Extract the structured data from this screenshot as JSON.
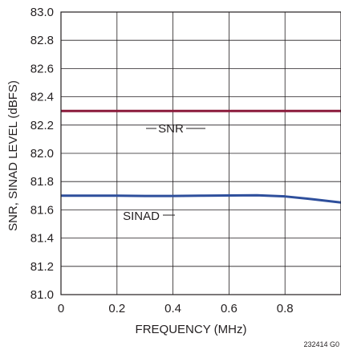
{
  "chart_data": {
    "type": "line",
    "title": "",
    "xlabel": "FREQUENCY (MHz)",
    "ylabel": "SNR, SINAD LEVEL (dBFS)",
    "xlim": [
      0,
      1.0
    ],
    "ylim": [
      81.0,
      83.0
    ],
    "x_ticks": [
      "0",
      "0.2",
      "0.4",
      "0.6",
      "0.8"
    ],
    "x_tick_values": [
      0,
      0.2,
      0.4,
      0.6,
      0.8
    ],
    "y_ticks": [
      "83.0",
      "82.8",
      "82.6",
      "82.4",
      "82.2",
      "82.0",
      "81.8",
      "81.6",
      "81.4",
      "81.2",
      "81.0"
    ],
    "y_tick_values": [
      83.0,
      82.8,
      82.6,
      82.4,
      82.2,
      82.0,
      81.8,
      81.6,
      81.4,
      81.2,
      81.0
    ],
    "grid": true,
    "series": [
      {
        "name": "SNR",
        "color": "#8b1a3b",
        "x": [
          0,
          0.1,
          0.2,
          0.3,
          0.4,
          0.5,
          0.6,
          0.7,
          0.8,
          0.9,
          1.0
        ],
        "values": [
          82.3,
          82.3,
          82.3,
          82.3,
          82.3,
          82.3,
          82.3,
          82.3,
          82.3,
          82.3,
          82.3
        ]
      },
      {
        "name": "SINAD",
        "color": "#2e4f9c",
        "x": [
          0,
          0.1,
          0.2,
          0.3,
          0.4,
          0.5,
          0.6,
          0.7,
          0.8,
          0.9,
          1.0
        ],
        "values": [
          81.7,
          81.7,
          81.7,
          81.698,
          81.698,
          81.7,
          81.702,
          81.703,
          81.695,
          81.675,
          81.652
        ]
      }
    ],
    "annotations": {
      "snr_label": "SNR",
      "sinad_label": "SINAD",
      "figure_id": "232414 G0"
    }
  }
}
